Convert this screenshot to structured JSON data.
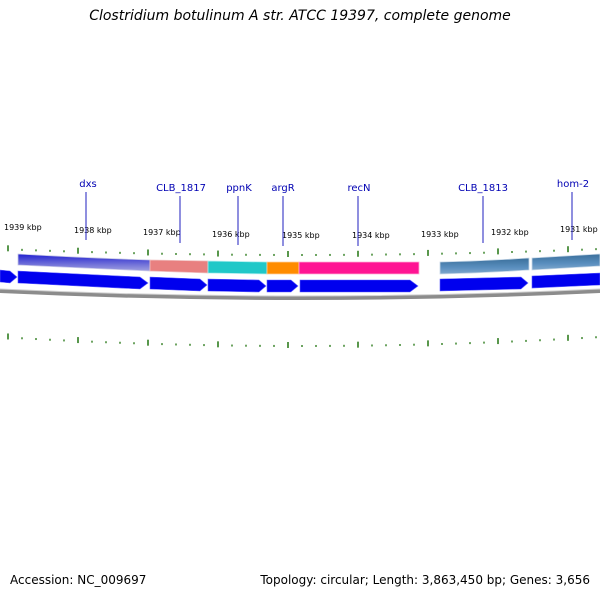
{
  "header": {
    "title": "Clostridium botulinum A str. ATCC 19397, complete genome"
  },
  "footer": {
    "accession": "Accession: NC_009697",
    "summary": "Topology: circular; Length: 3,863,450 bp; Genes: 3,656"
  },
  "colors": {
    "tick": "#2f7d1f",
    "cds_arrow": "#0000ee",
    "backbone": "#8c8c8c",
    "gene_label": "#0000b3",
    "callout_line": "#1f1fbf"
  },
  "coordinate_labels": [
    "1939 kbp",
    "1938 kbp",
    "1937 kbp",
    "1936 kbp",
    "1935 kbp",
    "1934 kbp",
    "1933 kbp",
    "1932 kbp",
    "1931 kbp"
  ],
  "gene_labels": [
    "dxs",
    "CLB_1817",
    "ppnK",
    "argR",
    "recN",
    "CLB_1813",
    "hom-2"
  ],
  "feature_colors": [
    "#4040d8",
    "#e88080",
    "#20c8c8",
    "#ff8c00",
    "#ff1493",
    "#4682b4",
    "#4682b4"
  ]
}
